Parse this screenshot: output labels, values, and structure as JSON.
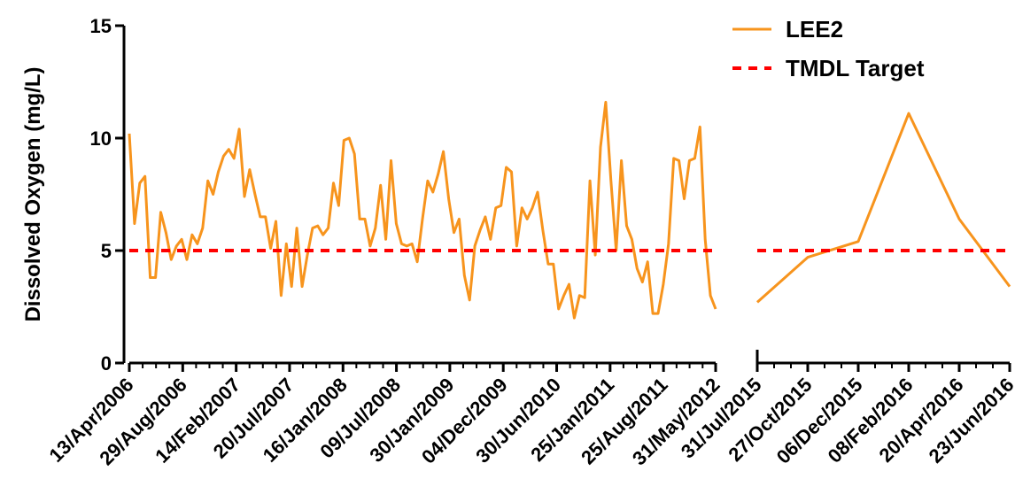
{
  "chart_data": {
    "type": "line",
    "title": "",
    "ylabel": "Dissolved Oxygen (mg/L)",
    "ylim": [
      0,
      15
    ],
    "yticks": [
      0,
      5,
      10,
      15
    ],
    "legend_position": "top-right",
    "panels": [
      {
        "xlim_index": [
          0,
          135
        ],
        "xtick_labels": [
          "13/Apr/2006",
          "29/Aug/2006",
          "14/Feb/2007",
          "20/Jul/2007",
          "16/Jan/2008",
          "09/Jul/2008",
          "30/Jan/2009",
          "04/Dec/2009",
          "30/Jun/2010",
          "25/Jan/2011",
          "25/Aug/2011",
          "31/May/2012"
        ],
        "xtick_index": [
          0,
          12.3,
          24.6,
          36.9,
          49.2,
          61.5,
          73.8,
          86.1,
          98.4,
          110.7,
          123,
          135
        ]
      },
      {
        "xlim_index": [
          0,
          5
        ],
        "xtick_labels": [
          "31/Jul/2015",
          "27/Oct/2015",
          "06/Dec/2015",
          "08/Feb/2016",
          "20/Apr/2016",
          "23/Jun/2016"
        ],
        "xtick_index": [
          0,
          1,
          2,
          3,
          4,
          5
        ]
      }
    ],
    "series": [
      {
        "name": "LEE2",
        "color": "#f7941d",
        "style": "solid",
        "segments": [
          {
            "panel": 0,
            "values": [
              10.2,
              6.2,
              8.0,
              8.3,
              3.8,
              3.8,
              6.7,
              5.8,
              4.6,
              5.2,
              5.5,
              4.6,
              5.7,
              5.3,
              6.0,
              8.1,
              7.5,
              8.5,
              9.2,
              9.5,
              9.1,
              10.4,
              7.4,
              8.6,
              7.5,
              6.5,
              6.5,
              5.1,
              6.3,
              3.0,
              5.3,
              3.4,
              6.0,
              3.4,
              4.8,
              6.0,
              6.1,
              5.7,
              6.0,
              8.0,
              7.0,
              9.9,
              10.0,
              9.3,
              6.4,
              6.4,
              5.2,
              6.0,
              7.9,
              5.5,
              9.0,
              6.2,
              5.3,
              5.2,
              5.3,
              4.5,
              6.4,
              8.1,
              7.6,
              8.4,
              9.4,
              7.3,
              5.8,
              6.4,
              3.9,
              2.8,
              5.2,
              5.9,
              6.5,
              5.5,
              6.9,
              7.0,
              8.7,
              8.5,
              5.2,
              6.9,
              6.4,
              6.9,
              7.6,
              5.9,
              4.4,
              4.4,
              2.4,
              3.0,
              3.5,
              2.0,
              3.0,
              2.9,
              8.1,
              4.8,
              9.6,
              11.6,
              8.1,
              5.0,
              9.0,
              6.1,
              5.5,
              4.2,
              3.6,
              4.5,
              2.2,
              2.2,
              3.5,
              5.3,
              9.1,
              9.0,
              7.3,
              9.0,
              9.1,
              10.5,
              5.5,
              3.0,
              2.4
            ],
            "x_start_index": 0,
            "x_end_index": 135
          },
          {
            "panel": 1,
            "x_index": [
              0,
              1,
              2,
              3,
              4,
              5
            ],
            "values": [
              2.7,
              4.7,
              5.4,
              11.1,
              6.4,
              3.4
            ]
          }
        ]
      },
      {
        "name": "TMDL Target",
        "color": "#ff0000",
        "style": "dashed",
        "constant": 5
      }
    ]
  }
}
